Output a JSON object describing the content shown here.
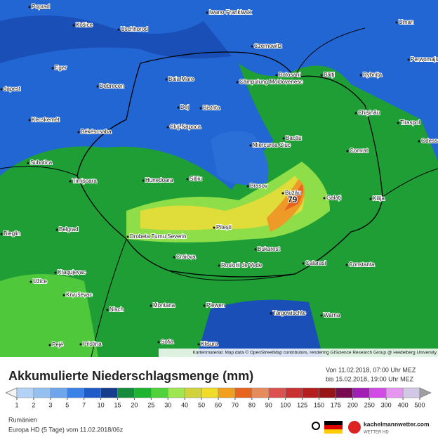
{
  "map": {
    "cities": [
      "Poprad",
      "Košice",
      "Uschhorod",
      "Iwano-Frankiwsk",
      "Uman",
      "Czernowitz",
      "Perwomajsk",
      "Eger",
      "Debrecen",
      "Baia Mare",
      "Botosani",
      "Bălți",
      "Rybnița",
      "dapest",
      "Câmpulung Moldovenesc",
      "Dej",
      "Bistrita",
      "Chișinău",
      "Tiraspol",
      "Kecskemét",
      "Békéscsaba",
      "Cluj-Napoca",
      "Bacău",
      "Miercurea Ciuc",
      "Comrat",
      "Odessa",
      "Subotica",
      "Timișoara",
      "Hunedoara",
      "Sibiu",
      "Brasov",
      "Buzău",
      "Galați",
      "Kilija",
      "Bieglin",
      "Belgrad",
      "Drobeta Turnu Severin",
      "Pitești",
      "Bukarest",
      "Craiova",
      "Rosiorii de Vede",
      "Calarasi",
      "Constanta",
      "Kragujevac",
      "Užice",
      "Krvuševac",
      "Nisch",
      "Montana",
      "Plewen",
      "Targowischte",
      "Warna",
      "Pejë",
      "Pristina",
      "Sofia",
      "Klisura"
    ],
    "max_label": "79",
    "attribution": "Kartenmaterial: Map data © OpenStreetMap contributors, rendering GIScience Research Group @ Heidelberg University"
  },
  "footer": {
    "title": "Akkumulierte Niederschlagsmenge (mm)",
    "from": "Von 11.02.2018, 07:00 Uhr MEZ",
    "to": "bis 15.02.2018, 19:00 Uhr MEZ",
    "region": "Rumänien",
    "model": "Europa HD (5 Tage) vom 11.02.2018/06z",
    "brand": "kachelmannwetter.com",
    "brand_sub": "WETTER HD"
  },
  "legend": {
    "values": [
      1,
      2,
      3,
      5,
      7,
      10,
      15,
      20,
      25,
      30,
      40,
      50,
      60,
      70,
      80,
      90,
      100,
      125,
      150,
      175,
      200,
      250,
      300,
      400,
      500
    ],
    "colors": [
      "#f4f4f4",
      "#b4d2f5",
      "#96c0f0",
      "#6ea5eb",
      "#3c82e6",
      "#1e5ac8",
      "#163c8c",
      "#148c3c",
      "#1eb432",
      "#50d23c",
      "#a0e650",
      "#d2d23c",
      "#f0dc28",
      "#f0a01e",
      "#e6641e",
      "#e68c5a",
      "#dc5050",
      "#c83232",
      "#b41e1e",
      "#961414",
      "#780a50",
      "#a01eb4",
      "#d24be6",
      "#e696f0",
      "#d2c8e6",
      "#ffffff",
      "#a0a0a0"
    ]
  }
}
